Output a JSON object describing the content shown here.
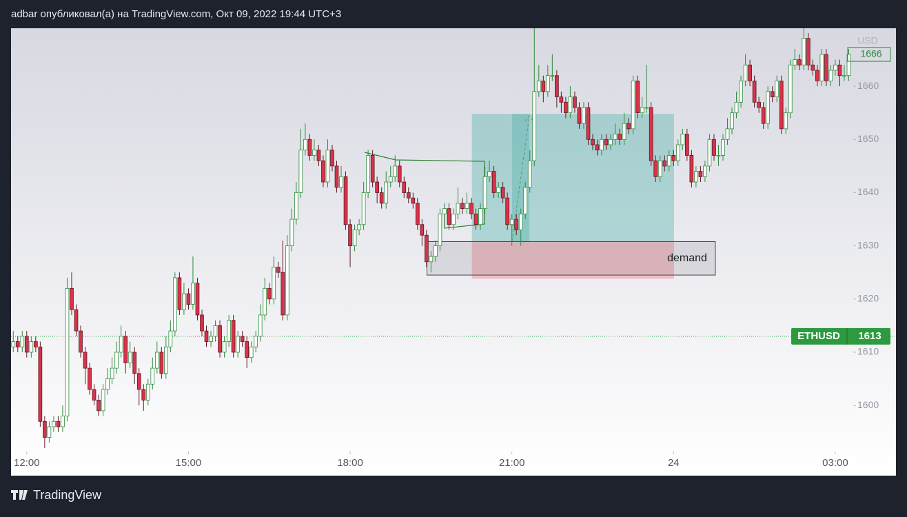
{
  "header": "adbar опубликовал(а) на TradingView.com, Окт 09, 2022 19:44 UTC+3",
  "footer": "TradingView",
  "chart_data": {
    "type": "candlestick",
    "currency": "USD",
    "xlim": [
      -0.5,
      187
    ],
    "xticks": [
      {
        "value": 3,
        "label": "12:00"
      },
      {
        "value": 39,
        "label": "15:00"
      },
      {
        "value": 75,
        "label": "18:00"
      },
      {
        "value": 111,
        "label": "21:00"
      },
      {
        "value": 147,
        "label": "24"
      },
      {
        "value": 183,
        "label": "03:00"
      }
    ],
    "ylim": [
      1586.8,
      1670.9
    ],
    "yticks": [
      1600,
      1610,
      1620,
      1630,
      1640,
      1650,
      1660
    ],
    "up_color": "#2e8b3a",
    "down_color": "#d9324a",
    "price_line": {
      "label": "ETHUSD",
      "value": 1613,
      "color": "#2e9a3f"
    },
    "long_position": {
      "entry": 1630.7,
      "target": 1654.8,
      "stop": 1623.8,
      "start": 102.1,
      "end": 147.1
    },
    "zone": {
      "label": "demand",
      "top": 1630.8,
      "bottom": 1624.5,
      "start": 92.1,
      "end": 156.3
    },
    "candles": [
      [
        1611,
        1614,
        1610,
        1612
      ],
      [
        1612,
        1613,
        1610,
        1611
      ],
      [
        1611,
        1614,
        1610,
        1613
      ],
      [
        1613,
        1614,
        1609,
        1610
      ],
      [
        1610,
        1613,
        1609,
        1612
      ],
      [
        1612,
        1613,
        1610,
        1611
      ],
      [
        1611,
        1612,
        1596,
        1597
      ],
      [
        1597,
        1598,
        1592,
        1594
      ],
      [
        1594,
        1597,
        1593,
        1596
      ],
      [
        1596,
        1598,
        1595,
        1597
      ],
      [
        1597,
        1598,
        1595,
        1596
      ],
      [
        1596,
        1600,
        1595,
        1598
      ],
      [
        1598,
        1624,
        1597,
        1622
      ],
      [
        1622,
        1625,
        1617,
        1618
      ],
      [
        1618,
        1619,
        1613,
        1614
      ],
      [
        1614,
        1615,
        1609,
        1610
      ],
      [
        1610,
        1611,
        1604,
        1607
      ],
      [
        1607,
        1608,
        1602,
        1603
      ],
      [
        1603,
        1604,
        1600,
        1601
      ],
      [
        1601,
        1602,
        1598,
        1599
      ],
      [
        1599,
        1604,
        1598,
        1603
      ],
      [
        1603,
        1607,
        1602,
        1605
      ],
      [
        1605,
        1609,
        1604,
        1607
      ],
      [
        1607,
        1612,
        1606,
        1610
      ],
      [
        1610,
        1615,
        1609,
        1613
      ],
      [
        1613,
        1614,
        1606,
        1608
      ],
      [
        1608,
        1612,
        1607,
        1610
      ],
      [
        1610,
        1611,
        1604,
        1606
      ],
      [
        1606,
        1607,
        1600,
        1603
      ],
      [
        1603,
        1604,
        1599,
        1601
      ],
      [
        1601,
        1605,
        1600,
        1604
      ],
      [
        1604,
        1609,
        1603,
        1607
      ],
      [
        1607,
        1612,
        1606,
        1610
      ],
      [
        1610,
        1611,
        1605,
        1606
      ],
      [
        1606,
        1613,
        1605,
        1611
      ],
      [
        1611,
        1616,
        1610,
        1614
      ],
      [
        1614,
        1625,
        1613,
        1624
      ],
      [
        1624,
        1625,
        1617,
        1618
      ],
      [
        1618,
        1623,
        1617,
        1621
      ],
      [
        1621,
        1622,
        1618,
        1619
      ],
      [
        1619,
        1628,
        1618,
        1623
      ],
      [
        1623,
        1624,
        1616,
        1617
      ],
      [
        1617,
        1618,
        1613,
        1614
      ],
      [
        1614,
        1615,
        1611,
        1612
      ],
      [
        1612,
        1614,
        1611,
        1613
      ],
      [
        1613,
        1616,
        1612,
        1615
      ],
      [
        1615,
        1616,
        1609,
        1610
      ],
      [
        1610,
        1613,
        1609,
        1612
      ],
      [
        1612,
        1617,
        1611,
        1616
      ],
      [
        1616,
        1617,
        1609,
        1610
      ],
      [
        1610,
        1614,
        1609,
        1613
      ],
      [
        1613,
        1614,
        1611,
        1612
      ],
      [
        1612,
        1613,
        1607,
        1609
      ],
      [
        1609,
        1612,
        1608,
        1611
      ],
      [
        1611,
        1614,
        1610,
        1613
      ],
      [
        1613,
        1619,
        1612,
        1617
      ],
      [
        1617,
        1624,
        1616,
        1622
      ],
      [
        1622,
        1623,
        1619,
        1620
      ],
      [
        1620,
        1628,
        1619,
        1626
      ],
      [
        1626,
        1627,
        1624,
        1625
      ],
      [
        1625,
        1631,
        1616,
        1617
      ],
      [
        1617,
        1632,
        1616,
        1630
      ],
      [
        1630,
        1637,
        1629,
        1635
      ],
      [
        1635,
        1642,
        1634,
        1640
      ],
      [
        1640,
        1652,
        1639,
        1648
      ],
      [
        1648,
        1653,
        1647,
        1650
      ],
      [
        1650,
        1651,
        1646,
        1647
      ],
      [
        1647,
        1650,
        1646,
        1648
      ],
      [
        1648,
        1649,
        1645,
        1646
      ],
      [
        1646,
        1647,
        1641,
        1642
      ],
      [
        1642,
        1650,
        1641,
        1648
      ],
      [
        1648,
        1649,
        1644,
        1645
      ],
      [
        1645,
        1646,
        1640,
        1641
      ],
      [
        1641,
        1645,
        1640,
        1643
      ],
      [
        1643,
        1644,
        1633,
        1634
      ],
      [
        1634,
        1635,
        1626,
        1630
      ],
      [
        1630,
        1634,
        1629,
        1633
      ],
      [
        1633,
        1635,
        1632,
        1634
      ],
      [
        1634,
        1642,
        1633,
        1640
      ],
      [
        1640,
        1648,
        1639,
        1647
      ],
      [
        1647,
        1648,
        1641,
        1642
      ],
      [
        1642,
        1643,
        1638,
        1640
      ],
      [
        1640,
        1641,
        1637,
        1638
      ],
      [
        1638,
        1644,
        1637,
        1642
      ],
      [
        1642,
        1645,
        1641,
        1643
      ],
      [
        1643,
        1647,
        1642,
        1645
      ],
      [
        1645,
        1646,
        1641,
        1642
      ],
      [
        1642,
        1643,
        1639,
        1640
      ],
      [
        1640,
        1641,
        1638,
        1639
      ],
      [
        1639,
        1640,
        1637,
        1638
      ],
      [
        1638,
        1639,
        1633,
        1634
      ],
      [
        1634,
        1635,
        1630,
        1632
      ],
      [
        1632,
        1633,
        1626,
        1627
      ],
      [
        1627,
        1629,
        1625,
        1628
      ],
      [
        1628,
        1631,
        1627,
        1630
      ],
      [
        1630,
        1637,
        1629,
        1636
      ],
      [
        1636,
        1638,
        1635,
        1637
      ],
      [
        1637,
        1638,
        1633,
        1634
      ],
      [
        1634,
        1637,
        1633,
        1636
      ],
      [
        1636,
        1641,
        1635,
        1638
      ],
      [
        1638,
        1639,
        1636,
        1637
      ],
      [
        1637,
        1640,
        1636,
        1638
      ],
      [
        1638,
        1639,
        1635,
        1636
      ],
      [
        1636,
        1637,
        1633,
        1634
      ],
      [
        1634,
        1638,
        1633,
        1637
      ],
      [
        1637,
        1645,
        1636,
        1643
      ],
      [
        1643,
        1646,
        1642,
        1644
      ],
      [
        1644,
        1645,
        1639,
        1640
      ],
      [
        1640,
        1642,
        1639,
        1641
      ],
      [
        1641,
        1642,
        1638,
        1639
      ],
      [
        1639,
        1640,
        1633,
        1634
      ],
      [
        1634,
        1636,
        1630,
        1635
      ],
      [
        1635,
        1636,
        1632,
        1633
      ],
      [
        1633,
        1637,
        1630,
        1636
      ],
      [
        1636,
        1642,
        1635,
        1641
      ],
      [
        1641,
        1648,
        1640,
        1646
      ],
      [
        1646,
        1671,
        1645,
        1659
      ],
      [
        1659,
        1664,
        1658,
        1661
      ],
      [
        1661,
        1662,
        1657,
        1659
      ],
      [
        1659,
        1664,
        1658,
        1662
      ],
      [
        1662,
        1666,
        1661,
        1662
      ],
      [
        1662,
        1663,
        1656,
        1658
      ],
      [
        1658,
        1659,
        1655,
        1657
      ],
      [
        1657,
        1658,
        1654,
        1655
      ],
      [
        1655,
        1660,
        1654,
        1658
      ],
      [
        1658,
        1659,
        1655,
        1656
      ],
      [
        1656,
        1657,
        1652,
        1653
      ],
      [
        1653,
        1657,
        1652,
        1656
      ],
      [
        1656,
        1657,
        1649,
        1650
      ],
      [
        1650,
        1651,
        1648,
        1649
      ],
      [
        1649,
        1650,
        1647,
        1648
      ],
      [
        1648,
        1651,
        1647,
        1650
      ],
      [
        1650,
        1651,
        1648,
        1649
      ],
      [
        1649,
        1651,
        1648,
        1650
      ],
      [
        1650,
        1653,
        1649,
        1651
      ],
      [
        1651,
        1652,
        1649,
        1650
      ],
      [
        1650,
        1655,
        1649,
        1653
      ],
      [
        1653,
        1654,
        1651,
        1652
      ],
      [
        1652,
        1662,
        1651,
        1661
      ],
      [
        1661,
        1662,
        1654,
        1655
      ],
      [
        1655,
        1658,
        1654,
        1656
      ],
      [
        1656,
        1664,
        1655,
        1656
      ],
      [
        1656,
        1657,
        1645,
        1646
      ],
      [
        1646,
        1647,
        1642,
        1643
      ],
      [
        1643,
        1647,
        1642,
        1646
      ],
      [
        1646,
        1647,
        1644,
        1645
      ],
      [
        1645,
        1648,
        1644,
        1647
      ],
      [
        1647,
        1648,
        1645,
        1646
      ],
      [
        1646,
        1650,
        1645,
        1649
      ],
      [
        1649,
        1652,
        1648,
        1651
      ],
      [
        1651,
        1652,
        1646,
        1647
      ],
      [
        1647,
        1648,
        1641,
        1642
      ],
      [
        1642,
        1645,
        1641,
        1644
      ],
      [
        1644,
        1645,
        1642,
        1643
      ],
      [
        1643,
        1646,
        1642,
        1645
      ],
      [
        1645,
        1651,
        1644,
        1650
      ],
      [
        1650,
        1651,
        1646,
        1647
      ],
      [
        1647,
        1649,
        1645,
        1647
      ],
      [
        1647,
        1651,
        1646,
        1650
      ],
      [
        1650,
        1654,
        1649,
        1652
      ],
      [
        1652,
        1656,
        1651,
        1655
      ],
      [
        1655,
        1659,
        1654,
        1657
      ],
      [
        1657,
        1662,
        1656,
        1661
      ],
      [
        1661,
        1666,
        1660,
        1664
      ],
      [
        1664,
        1665,
        1660,
        1661
      ],
      [
        1661,
        1662,
        1656,
        1657
      ],
      [
        1657,
        1658,
        1655,
        1656
      ],
      [
        1656,
        1657,
        1652,
        1653
      ],
      [
        1653,
        1660,
        1652,
        1659
      ],
      [
        1659,
        1660,
        1657,
        1658
      ],
      [
        1658,
        1662,
        1657,
        1661
      ],
      [
        1661,
        1662,
        1651,
        1652
      ],
      [
        1652,
        1656,
        1651,
        1655
      ],
      [
        1655,
        1665,
        1654,
        1664
      ],
      [
        1664,
        1667,
        1663,
        1665
      ],
      [
        1665,
        1666,
        1663,
        1664
      ],
      [
        1664,
        1671,
        1663,
        1669
      ],
      [
        1669,
        1670,
        1663,
        1664
      ],
      [
        1664,
        1665,
        1662,
        1663
      ],
      [
        1663,
        1664,
        1660,
        1661
      ],
      [
        1661,
        1667,
        1660,
        1666
      ],
      [
        1666,
        1667,
        1660,
        1661
      ],
      [
        1661,
        1664,
        1660,
        1663
      ],
      [
        1663,
        1665,
        1662,
        1664
      ],
      [
        1664,
        1665,
        1660,
        1662
      ],
      [
        1662,
        1664,
        1661,
        1662
      ],
      [
        1662,
        1667,
        1661,
        1666
      ]
    ]
  }
}
